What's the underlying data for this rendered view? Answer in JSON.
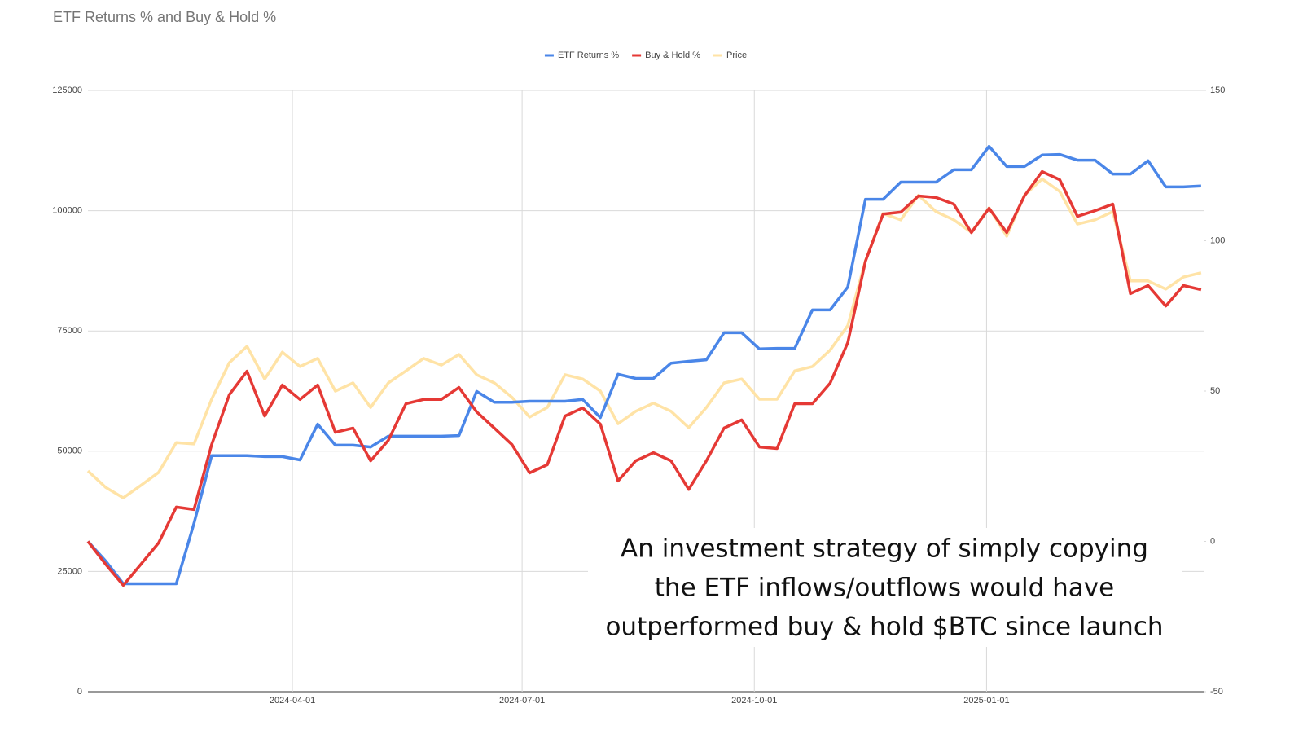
{
  "chart_data": {
    "type": "line",
    "title": "ETF Returns % and Buy & Hold %",
    "annotation": [
      "An investment strategy of simply copying",
      "the ETF inflows/outflows would have",
      "outperformed buy & hold $BTC since launch"
    ],
    "x": [
      "2024-01-11",
      "2024-01-18",
      "2024-01-25",
      "2024-02-01",
      "2024-02-08",
      "2024-02-15",
      "2024-02-22",
      "2024-02-29",
      "2024-03-07",
      "2024-03-14",
      "2024-03-21",
      "2024-03-28",
      "2024-04-04",
      "2024-04-11",
      "2024-04-18",
      "2024-04-25",
      "2024-05-02",
      "2024-05-09",
      "2024-05-16",
      "2024-05-23",
      "2024-05-30",
      "2024-06-06",
      "2024-06-13",
      "2024-06-20",
      "2024-06-27",
      "2024-07-04",
      "2024-07-11",
      "2024-07-18",
      "2024-07-25",
      "2024-08-01",
      "2024-08-08",
      "2024-08-15",
      "2024-08-22",
      "2024-08-29",
      "2024-09-05",
      "2024-09-12",
      "2024-09-19",
      "2024-09-26",
      "2024-10-03",
      "2024-10-10",
      "2024-10-17",
      "2024-10-24",
      "2024-10-31",
      "2024-11-07",
      "2024-11-14",
      "2024-11-21",
      "2024-11-28",
      "2024-12-05",
      "2024-12-12",
      "2024-12-19",
      "2024-12-26",
      "2025-01-02",
      "2025-01-09",
      "2025-01-16",
      "2025-01-23",
      "2025-01-30",
      "2025-02-06",
      "2025-02-13",
      "2025-02-20",
      "2025-02-27",
      "2025-03-06",
      "2025-03-13",
      "2025-03-20",
      "2025-03-27"
    ],
    "series": [
      {
        "name": "ETF Returns %",
        "color": "#4a86e8",
        "axis": "y2",
        "values": [
          0,
          -6.5,
          -14.1,
          -14.1,
          -14.1,
          -14.1,
          6.0,
          28.5,
          28.5,
          28.5,
          28.2,
          28.2,
          27.1,
          39,
          32,
          32,
          31.4,
          35,
          35,
          35,
          35,
          35.2,
          49.9,
          46.3,
          46.3,
          46.6,
          46.6,
          46.6,
          47.2,
          41.2,
          55.6,
          54.2,
          54.2,
          59.3,
          59.9,
          60.4,
          69.4,
          69.4,
          64,
          64.2,
          64.2,
          77,
          77,
          84.6,
          113.8,
          113.8,
          119.5,
          119.5,
          119.5,
          123.6,
          123.6,
          131.4,
          124.7,
          124.7,
          128.5,
          128.7,
          126.8,
          126.8,
          122.2,
          122.2,
          126.6,
          117.9,
          117.9,
          118.2
        ]
      },
      {
        "name": "Buy & Hold %",
        "color": "#e53935",
        "axis": "y2",
        "values": [
          0,
          -7.6,
          -14.6,
          -7.6,
          -0.5,
          11.4,
          10.6,
          32.2,
          48.8,
          56.6,
          41.7,
          52,
          47.2,
          52,
          36.3,
          37.7,
          26.8,
          33.6,
          45.8,
          47.2,
          47.2,
          51.2,
          43.1,
          37.7,
          32.2,
          22.8,
          25.5,
          41.7,
          44.4,
          39,
          20.1,
          26.8,
          29.5,
          26.8,
          17.3,
          26.8,
          37.7,
          40.4,
          31.4,
          30.9,
          45.8,
          45.8,
          52.6,
          66.1,
          93.2,
          108.9,
          109.5,
          114.9,
          114.4,
          112.2,
          102.7,
          110.8,
          102.7,
          114.9,
          123,
          120.3,
          108.1,
          110,
          112.2,
          82.4,
          85.1,
          78.3,
          85.1,
          83.7
        ]
      },
      {
        "name": "Price",
        "color": "#ffe3a6",
        "values": [
          45900,
          42500,
          40300,
          42900,
          45600,
          51800,
          51500,
          60800,
          68400,
          71800,
          65000,
          70600,
          67600,
          69300,
          62500,
          64200,
          59100,
          64200,
          66700,
          69300,
          67900,
          70100,
          65900,
          64200,
          61200,
          57100,
          59100,
          65900,
          65000,
          62500,
          55700,
          58300,
          60000,
          58300,
          54900,
          59100,
          64200,
          65000,
          60800,
          60800,
          66700,
          67600,
          71000,
          76100,
          89600,
          99400,
          98100,
          103200,
          99800,
          98100,
          95500,
          100600,
          94700,
          103200,
          106600,
          104000,
          97200,
          98100,
          99800,
          85400,
          85400,
          83700,
          86200,
          87100
        ]
      }
    ],
    "xlim": [
      "2024-01-11",
      "2025-03-28"
    ],
    "xticks": [
      "2024-04-01",
      "2024-07-01",
      "2024-10-01",
      "2025-01-01"
    ],
    "ylim": [
      0,
      125000
    ],
    "yticks": [
      0,
      25000,
      50000,
      75000,
      100000,
      125000
    ],
    "y2lim": [
      -50,
      150
    ],
    "y2ticks": [
      -50,
      0,
      50,
      100,
      150
    ],
    "grid": true,
    "legend": "top"
  }
}
